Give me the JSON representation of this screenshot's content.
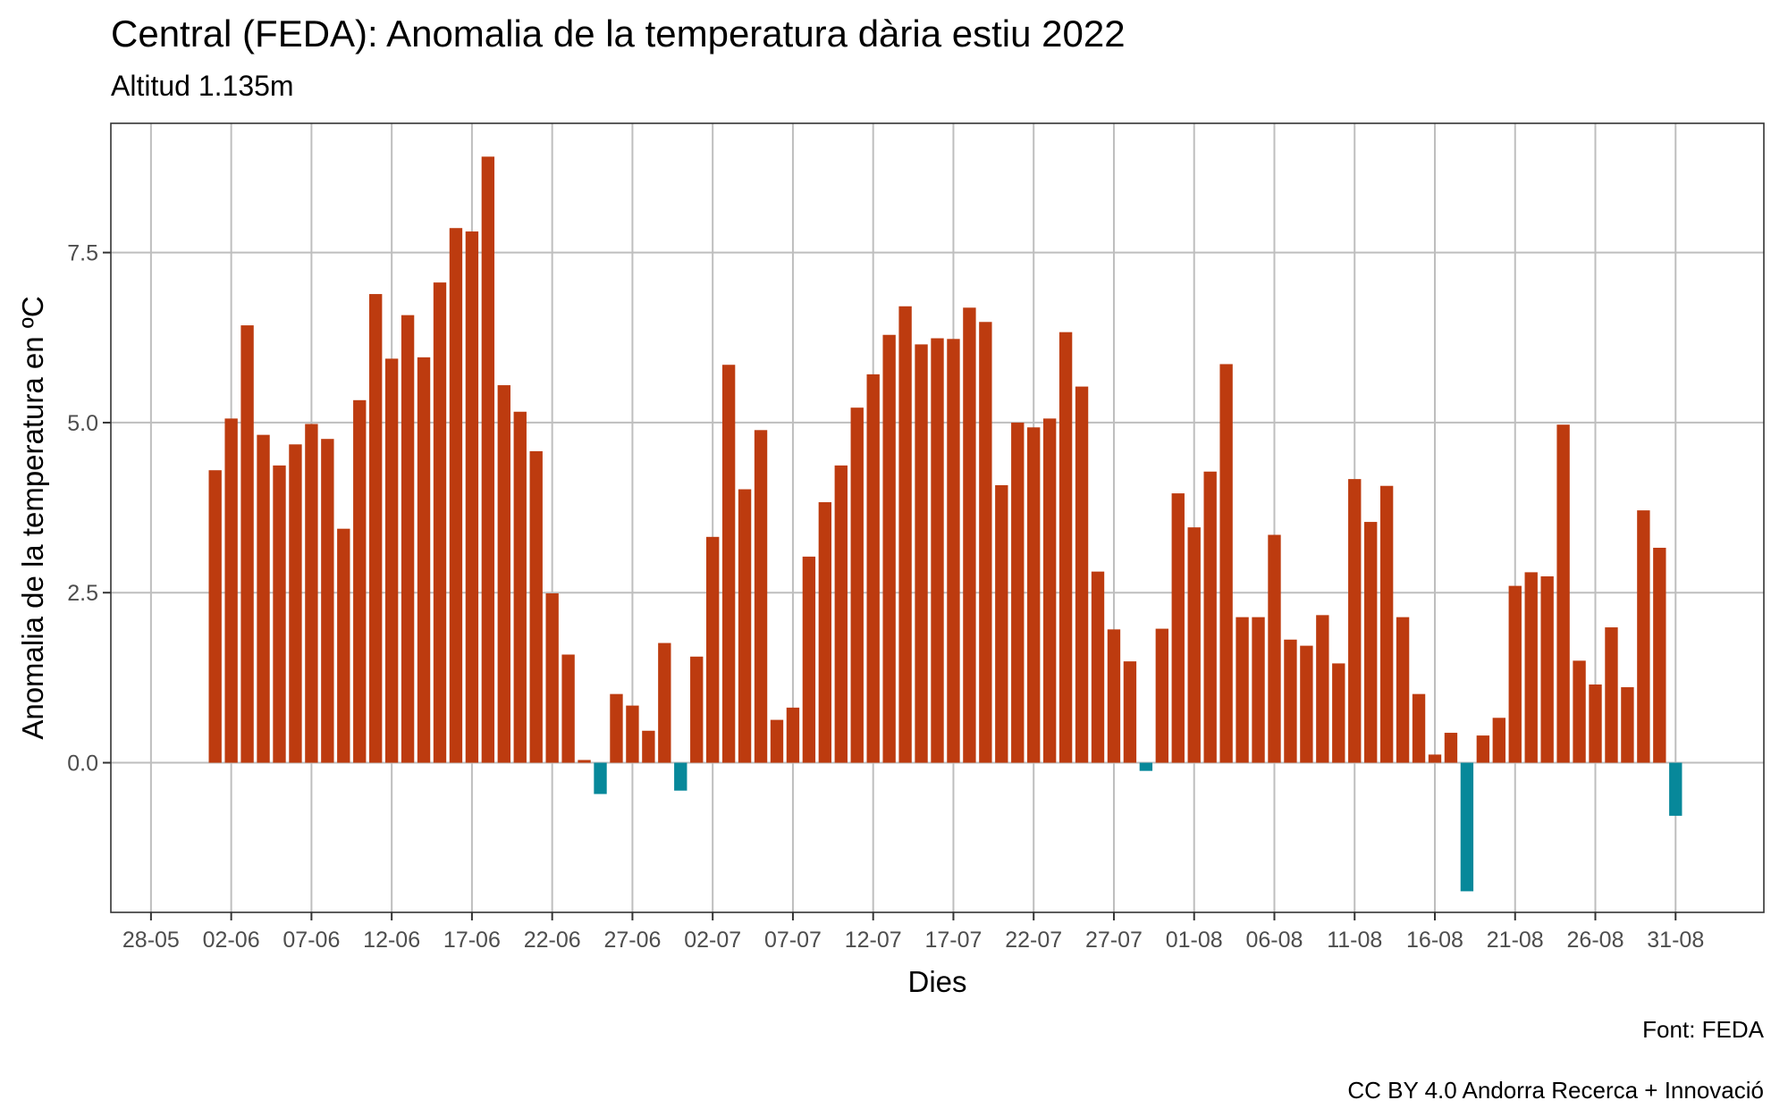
{
  "title": "Central (FEDA): Anomalia de la temperatura dària estiu 2022",
  "subtitle": "Altitud 1.135m",
  "caption_source": "Font: FEDA",
  "caption_license": "CC BY 4.0 Andorra Recerca + Innovació",
  "colors": {
    "positive": "#BD3B0F",
    "negative": "#07889A",
    "grid": "#BEBEBE",
    "panel_border": "#333333"
  },
  "chart_data": {
    "type": "bar",
    "xlabel": "Dies",
    "ylabel": "Anomalia de la temperatura en ºC",
    "x_start": "01-06",
    "x_ticks": [
      "28-05",
      "02-06",
      "07-06",
      "12-06",
      "17-06",
      "22-06",
      "27-06",
      "02-07",
      "07-07",
      "12-07",
      "17-07",
      "22-07",
      "27-07",
      "01-08",
      "06-08",
      "11-08",
      "16-08",
      "21-08",
      "26-08",
      "31-08"
    ],
    "y_ticks": [
      0.0,
      2.5,
      5.0,
      7.5
    ],
    "y_tick_labels": [
      "0.0",
      "2.5",
      "5.0",
      "7.5"
    ],
    "xlim": [
      "26-05",
      "06-09"
    ],
    "ylim": [
      -2.2,
      9.4
    ],
    "grid": true,
    "values": [
      4.3,
      5.06,
      6.43,
      4.82,
      4.37,
      4.68,
      4.98,
      4.76,
      3.44,
      5.33,
      6.89,
      5.94,
      6.58,
      5.96,
      7.06,
      7.86,
      7.81,
      8.91,
      5.55,
      5.16,
      4.58,
      2.49,
      1.59,
      0.04,
      -0.46,
      1.01,
      0.84,
      0.47,
      1.76,
      -0.41,
      1.56,
      3.32,
      5.85,
      4.02,
      4.89,
      0.63,
      0.81,
      3.03,
      3.83,
      4.37,
      5.22,
      5.71,
      6.29,
      6.71,
      6.15,
      6.24,
      6.23,
      6.69,
      6.48,
      4.08,
      5.0,
      4.93,
      5.06,
      6.33,
      5.53,
      2.81,
      1.96,
      1.49,
      -0.12,
      1.97,
      3.96,
      3.46,
      4.28,
      5.86,
      2.14,
      2.14,
      3.35,
      1.81,
      1.72,
      2.17,
      1.46,
      4.17,
      3.54,
      4.07,
      2.14,
      1.01,
      0.12,
      0.44,
      -1.89,
      0.4,
      0.66,
      2.6,
      2.8,
      2.74,
      4.97,
      1.5,
      1.15,
      1.99,
      1.11,
      3.71,
      3.16,
      -0.78
    ]
  }
}
